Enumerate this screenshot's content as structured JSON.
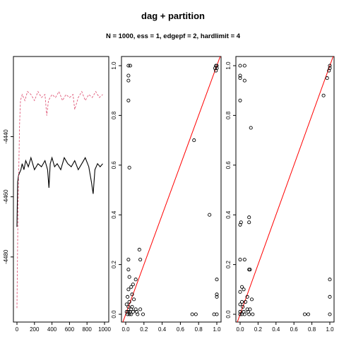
{
  "title": "dag + partition",
  "subtitle": "N = 1000, ess = 1, edgepf = 2, hardlimit = 4",
  "chart_data": [
    {
      "type": "line",
      "title": "",
      "xlabel": "",
      "ylabel": "",
      "xlim": [
        0,
        1000
      ],
      "ylim": [
        -4500,
        -4415
      ],
      "xticks": [
        "0",
        "200",
        "400",
        "600",
        "800",
        "1000"
      ],
      "yticks": [
        "-4480",
        "-4460",
        "-4440"
      ],
      "grid": false,
      "series": [
        {
          "color": "#000000",
          "style": "solid",
          "x": [
            0,
            8,
            18,
            30,
            45,
            60,
            80,
            100,
            130,
            160,
            200,
            240,
            280,
            320,
            350,
            365,
            380,
            400,
            430,
            460,
            500,
            540,
            580,
            620,
            660,
            700,
            740,
            780,
            820,
            850,
            870,
            890,
            920,
            950,
            980
          ],
          "y": [
            -4470,
            -4455,
            -4453,
            -4452,
            -4451,
            -4449,
            -4451,
            -4448,
            -4450,
            -4447,
            -4451,
            -4449,
            -4450,
            -4448,
            -4451,
            -4457,
            -4449,
            -4447,
            -4450,
            -4449,
            -4451,
            -4447,
            -4449,
            -4450,
            -4448,
            -4451,
            -4449,
            -4447,
            -4450,
            -4455,
            -4459,
            -4451,
            -4449,
            -4450,
            -4449
          ]
        },
        {
          "color": "#e05a7a",
          "style": "dashed",
          "x": [
            0,
            10,
            20,
            30,
            40,
            60,
            90,
            120,
            160,
            200,
            240,
            280,
            320,
            340,
            360,
            400,
            440,
            480,
            520,
            560,
            600,
            640,
            660,
            700,
            740,
            780,
            820,
            860,
            900,
            940,
            980
          ],
          "y": [
            -4497,
            -4470,
            -4452,
            -4436,
            -4428,
            -4426,
            -4428,
            -4425,
            -4426,
            -4428,
            -4425,
            -4427,
            -4426,
            -4433,
            -4428,
            -4426,
            -4427,
            -4425,
            -4428,
            -4426,
            -4427,
            -4426,
            -4431,
            -4427,
            -4425,
            -4428,
            -4426,
            -4427,
            -4425,
            -4427,
            -4426
          ]
        }
      ]
    },
    {
      "type": "scatter",
      "title": "",
      "xlabel": "",
      "ylabel": "",
      "xlim": [
        0,
        1
      ],
      "ylim": [
        0,
        1
      ],
      "xticks": [
        "0.0",
        "0.2",
        "0.4",
        "0.6",
        "0.8",
        "1.0"
      ],
      "yticks": [
        "0.0",
        "0.2",
        "0.4",
        "0.6",
        "0.8",
        "1.0"
      ],
      "reference_line": {
        "color": "#ff0000",
        "from": [
          0,
          0
        ],
        "to": [
          1,
          1
        ]
      },
      "points": [
        [
          0.03,
          1.0
        ],
        [
          0.05,
          1.0
        ],
        [
          0.03,
          0.96
        ],
        [
          0.03,
          0.94
        ],
        [
          0.03,
          0.86
        ],
        [
          0.98,
          0.99
        ],
        [
          0.99,
          1.0
        ],
        [
          1.0,
          1.0
        ],
        [
          1.0,
          0.99
        ],
        [
          0.99,
          0.98
        ],
        [
          0.75,
          0.7
        ],
        [
          0.04,
          0.59
        ],
        [
          0.92,
          0.4
        ],
        [
          0.15,
          0.26
        ],
        [
          0.03,
          0.22
        ],
        [
          0.16,
          0.22
        ],
        [
          0.03,
          0.18
        ],
        [
          0.04,
          0.15
        ],
        [
          0.11,
          0.14
        ],
        [
          0.08,
          0.12
        ],
        [
          0.06,
          0.11
        ],
        [
          0.03,
          0.1
        ],
        [
          0.07,
          0.08
        ],
        [
          0.02,
          0.07
        ],
        [
          0.09,
          0.06
        ],
        [
          0.04,
          0.05
        ],
        [
          0.01,
          0.04
        ],
        [
          0.03,
          0.03
        ],
        [
          0.07,
          0.03
        ],
        [
          0.11,
          0.02
        ],
        [
          0.16,
          0.02
        ],
        [
          0.06,
          0.02
        ],
        [
          0.01,
          0.01
        ],
        [
          0.03,
          0.01
        ],
        [
          0.05,
          0.01
        ],
        [
          0.08,
          0.01
        ],
        [
          0.12,
          0.01
        ],
        [
          0.02,
          0.0
        ],
        [
          0.04,
          0.0
        ],
        [
          0.06,
          0.0
        ],
        [
          0.13,
          0.0
        ],
        [
          0.19,
          0.0
        ],
        [
          0.73,
          0.0
        ],
        [
          0.77,
          0.0
        ],
        [
          0.97,
          0.0
        ],
        [
          1.0,
          0.0
        ],
        [
          1.0,
          0.07
        ],
        [
          1.0,
          0.08
        ],
        [
          1.0,
          0.14
        ]
      ]
    },
    {
      "type": "scatter",
      "title": "",
      "xlabel": "",
      "ylabel": "",
      "xlim": [
        0,
        1
      ],
      "ylim": [
        0,
        1
      ],
      "xticks": [
        "0.0",
        "0.2",
        "0.4",
        "0.6",
        "0.8",
        "1.0"
      ],
      "yticks": [
        "0.0",
        "0.2",
        "0.4",
        "0.6",
        "0.8",
        "1.0"
      ],
      "reference_line": {
        "color": "#ff0000",
        "from": [
          0,
          0
        ],
        "to": [
          1,
          1
        ]
      },
      "points": [
        [
          0.0,
          1.0
        ],
        [
          0.05,
          1.0
        ],
        [
          0.0,
          0.96
        ],
        [
          0.0,
          0.95
        ],
        [
          0.05,
          0.94
        ],
        [
          0.0,
          0.86
        ],
        [
          0.12,
          0.75
        ],
        [
          0.93,
          0.88
        ],
        [
          0.97,
          0.95
        ],
        [
          1.0,
          1.0
        ],
        [
          1.0,
          0.99
        ],
        [
          0.99,
          0.98
        ],
        [
          0.1,
          0.39
        ],
        [
          0.1,
          0.37
        ],
        [
          0.0,
          0.36
        ],
        [
          0.01,
          0.37
        ],
        [
          0.0,
          0.22
        ],
        [
          0.05,
          0.22
        ],
        [
          0.11,
          0.18
        ],
        [
          0.1,
          0.18
        ],
        [
          0.02,
          0.11
        ],
        [
          0.0,
          0.09
        ],
        [
          0.04,
          0.1
        ],
        [
          0.08,
          0.07
        ],
        [
          0.13,
          0.06
        ],
        [
          0.02,
          0.05
        ],
        [
          0.06,
          0.05
        ],
        [
          0.0,
          0.04
        ],
        [
          0.03,
          0.03
        ],
        [
          0.08,
          0.02
        ],
        [
          0.11,
          0.02
        ],
        [
          0.0,
          0.01
        ],
        [
          0.04,
          0.01
        ],
        [
          0.09,
          0.01
        ],
        [
          0.0,
          0.0
        ],
        [
          0.02,
          0.0
        ],
        [
          0.05,
          0.0
        ],
        [
          0.1,
          0.0
        ],
        [
          0.14,
          0.0
        ],
        [
          0.72,
          0.0
        ],
        [
          0.76,
          0.0
        ],
        [
          1.0,
          0.0
        ],
        [
          1.0,
          0.07
        ],
        [
          1.0,
          0.14
        ]
      ]
    }
  ]
}
